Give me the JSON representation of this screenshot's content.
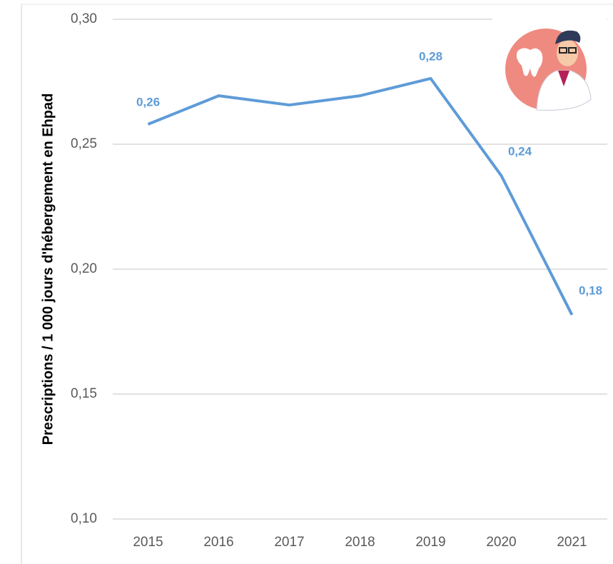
{
  "chart_data": {
    "type": "line",
    "y_axis_label": "Prescriptions / 1 000 jours d'hébergement en Ehpad",
    "categories": [
      "2015",
      "2016",
      "2017",
      "2018",
      "2019",
      "2020",
      "2021"
    ],
    "series": [
      {
        "color": "#5e9bd8",
        "values": [
          0.258,
          0.2694,
          0.2657,
          0.2694,
          0.2763,
          0.2374,
          0.1817
        ],
        "value_labels": [
          "0,26",
          null,
          null,
          null,
          "0,28",
          "0,24",
          "0,18"
        ]
      }
    ],
    "ylim": [
      0.1,
      0.3
    ],
    "yticks": [
      {
        "value": 0.1,
        "label": "0,10"
      },
      {
        "value": 0.15,
        "label": "0,15"
      },
      {
        "value": 0.2,
        "label": "0,20"
      },
      {
        "value": 0.25,
        "label": "0,25"
      },
      {
        "value": 0.3,
        "label": "0,30"
      }
    ],
    "grid": true
  }
}
